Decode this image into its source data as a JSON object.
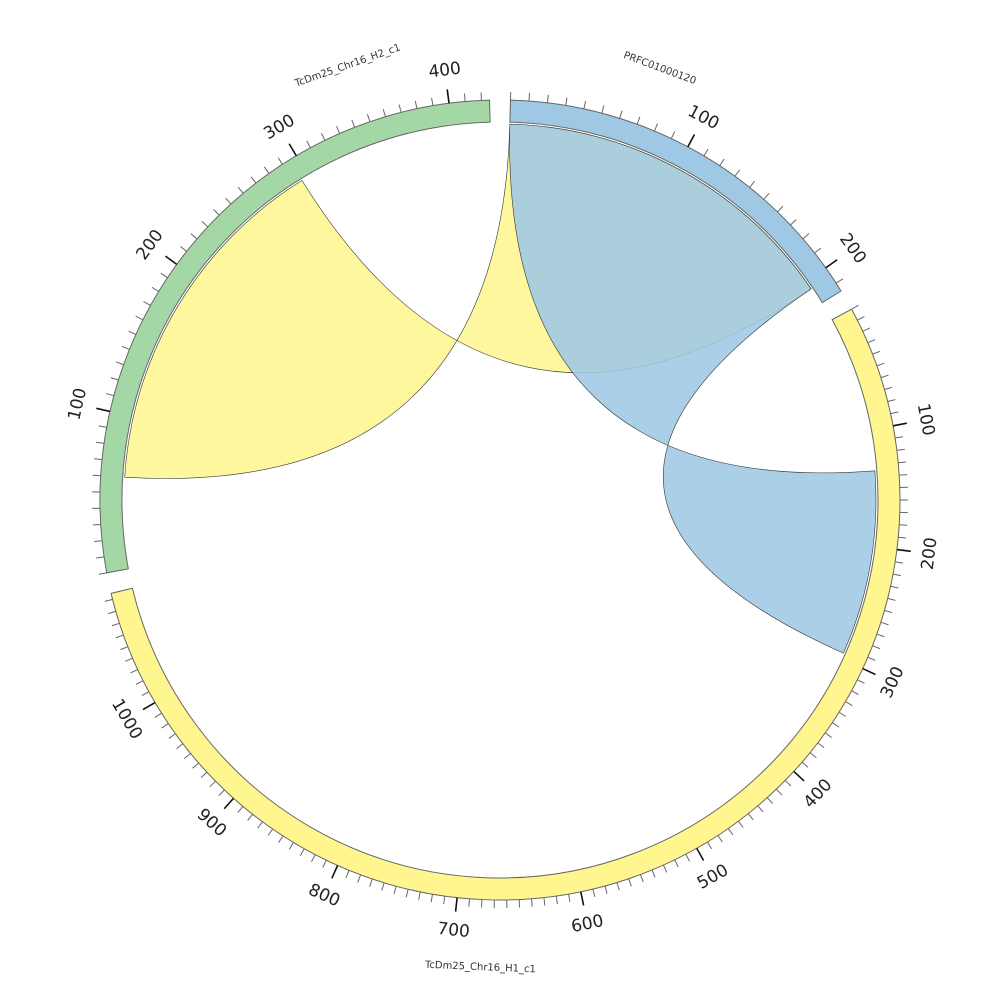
{
  "chart_data": {
    "type": "chord",
    "segments": [
      {
        "name": "PRFC01000120",
        "start_angle_deg": 1.5,
        "end_angle_deg": 58.5,
        "length": 215,
        "color": "#9ec8e4",
        "tick_labels": [
          "100",
          "200"
        ]
      },
      {
        "name": "TcDm25_Chr16_H1_c1",
        "start_angle_deg": 61.5,
        "end_angle_deg": 256.5,
        "length": 1095,
        "color": "#fff68f",
        "tick_labels": [
          "100",
          "200",
          "300",
          "400",
          "500",
          "600",
          "700",
          "800",
          "900",
          "1000"
        ]
      },
      {
        "name": "TcDm25_Chr16_H2_c1",
        "start_angle_deg": 259.5,
        "end_angle_deg": 358.5,
        "length": 425,
        "color": "#a3d8a6",
        "tick_labels": [
          "100",
          "200",
          "300",
          "400"
        ]
      }
    ],
    "links": [
      {
        "from": {
          "segment": 0,
          "start": 0,
          "end": 205
        },
        "to": {
          "segment": 2,
          "start": 60,
          "end": 295
        },
        "color": "#fff68f"
      },
      {
        "from": {
          "segment": 0,
          "start": 0,
          "end": 205
        },
        "to": {
          "segment": 1,
          "start": 135,
          "end": 295
        },
        "color": "#9ec8e4"
      }
    ]
  }
}
